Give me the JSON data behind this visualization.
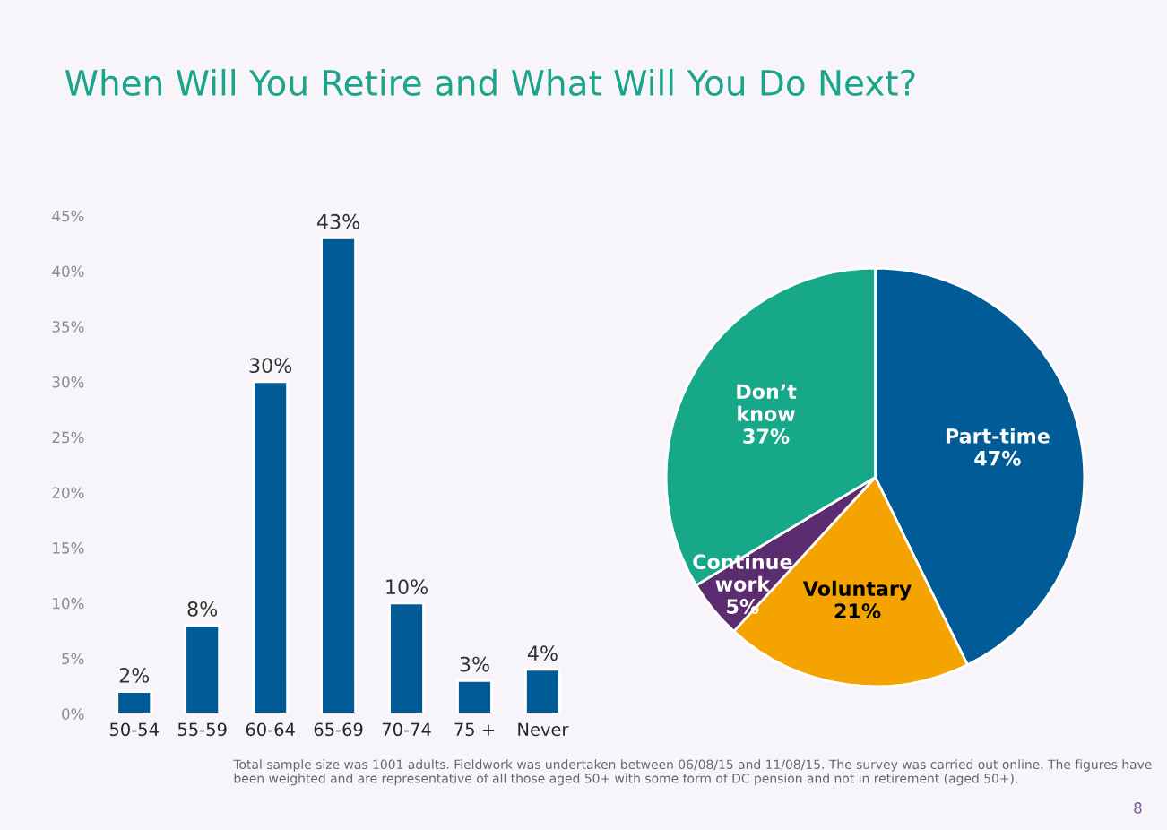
{
  "chart_data": [
    {
      "type": "bar",
      "title": "When Will You Retire and What Will You Do Next?",
      "categories": [
        "50-54",
        "55-59",
        "60-64",
        "65-69",
        "70-74",
        "75 +",
        "Never"
      ],
      "values": [
        2,
        8,
        30,
        43,
        10,
        3,
        4
      ],
      "color": "#005b96",
      "value_labels": [
        "2%",
        "8%",
        "30%",
        "43%",
        "10%",
        "3%",
        "4%"
      ],
      "ylim": [
        0,
        45
      ],
      "yticks": [
        {
          "value": 0,
          "label": "0%"
        },
        {
          "value": 5,
          "label": "5%"
        },
        {
          "value": 10,
          "label": "10%"
        },
        {
          "value": 15,
          "label": "15%"
        },
        {
          "value": 20,
          "label": "20%"
        },
        {
          "value": 25,
          "label": "25%"
        },
        {
          "value": 30,
          "label": "30%"
        },
        {
          "value": 35,
          "label": "35%"
        },
        {
          "value": 40,
          "label": "40%"
        },
        {
          "value": 45,
          "label": "45%"
        }
      ],
      "annotations": [
        "Total sample size was 1001 adults. Fieldwork was undertaken between 06/08/15 and 11/08/15. The survey was carried out online. The figures have been weighted and are representative of all those aged 50+ with some form of DC pension and not in retirement (aged 50+).",
        "8"
      ]
    },
    {
      "type": "pie",
      "categories": [
        "Part-time",
        "Voluntary",
        "Continue work",
        "Don’t know"
      ],
      "values": [
        47,
        21,
        5,
        37
      ],
      "colors": [
        "#005b96",
        "#f5a300",
        "#5b2c6f",
        "#17a88a"
      ],
      "value_labels": [
        "47%",
        "21%",
        "5%",
        "37%"
      ]
    }
  ]
}
